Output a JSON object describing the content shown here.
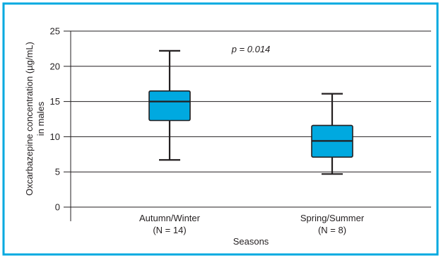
{
  "colors": {
    "frame": "#00a9e0",
    "box_fill": "#00a9e0",
    "stroke": "#231f20",
    "background": "#ffffff"
  },
  "chart_data": {
    "type": "boxplot",
    "xlabel": "Seasons",
    "ylabel_line1": "Oxcarbazepine concentration (µg/mL)",
    "ylabel_line2": "in males",
    "ylim": [
      0,
      25
    ],
    "yticks": [
      0,
      5,
      10,
      15,
      20,
      25
    ],
    "grid": true,
    "annotation": "p = 0.014",
    "categories": [
      {
        "label": "Autumn/Winter",
        "n_label": "(N = 14)",
        "whisker_low": 6.7,
        "q1": 12.3,
        "median": 15.0,
        "q3": 16.5,
        "whisker_high": 22.2
      },
      {
        "label": "Spring/Summer",
        "n_label": "(N = 8)",
        "whisker_low": 4.7,
        "q1": 7.1,
        "median": 9.4,
        "q3": 11.6,
        "whisker_high": 16.1
      }
    ]
  }
}
